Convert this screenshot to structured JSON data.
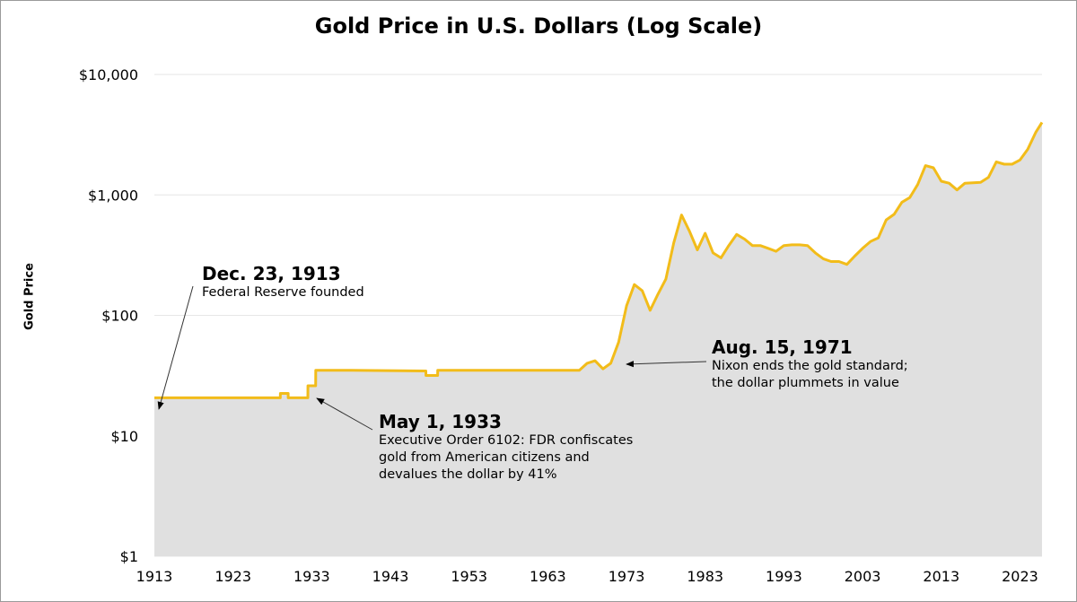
{
  "chart_data": {
    "type": "area",
    "title": "Gold Price in U.S. Dollars (Log Scale)",
    "xlabel": "",
    "ylabel": "Gold Price",
    "yscale": "log",
    "ylim": [
      1,
      10000
    ],
    "xlim": [
      1913,
      2025.8
    ],
    "yticks": [
      1,
      10,
      100,
      1000,
      10000
    ],
    "ytick_labels": [
      "$1",
      "$10",
      "$100",
      "$1,000",
      "$10,000"
    ],
    "xticks": [
      1913,
      1923,
      1933,
      1943,
      1953,
      1963,
      1973,
      1983,
      1993,
      2003,
      2013,
      2023
    ],
    "grid": "horizontal",
    "line_color": "#F2BC1A",
    "fill_color": "#E0E0E0",
    "x": [
      1913,
      1929,
      1929.01,
      1930,
      1930.01,
      1932.5,
      1932.51,
      1933.5,
      1933.51,
      1938,
      1947.5,
      1947.51,
      1949,
      1949.01,
      1967,
      1968,
      1969,
      1970,
      1971,
      1972,
      1973,
      1974,
      1975,
      1976,
      1977,
      1978,
      1979,
      1980,
      1981,
      1982,
      1983,
      1984,
      1985,
      1986,
      1987,
      1988,
      1989,
      1990,
      1991,
      1992,
      1993,
      1994,
      1995,
      1996,
      1997,
      1998,
      1999,
      2000,
      2001,
      2002,
      2003,
      2004,
      2005,
      2006,
      2007,
      2008,
      2009,
      2010,
      2011,
      2012,
      2013,
      2014,
      2015,
      2016,
      2017,
      2018,
      2019,
      2020,
      2021,
      2022,
      2023,
      2024,
      2025,
      2025.8
    ],
    "y": [
      20.67,
      20.67,
      22.5,
      22.5,
      20.67,
      20.67,
      26,
      26,
      35,
      35,
      34.5,
      31.7,
      31.7,
      35,
      35,
      40,
      42,
      36,
      40,
      60,
      120,
      180,
      160,
      110,
      150,
      200,
      400,
      680,
      500,
      350,
      480,
      330,
      300,
      380,
      470,
      430,
      380,
      380,
      360,
      340,
      380,
      385,
      385,
      380,
      330,
      295,
      280,
      280,
      265,
      310,
      360,
      410,
      440,
      620,
      690,
      870,
      950,
      1220,
      1750,
      1680,
      1300,
      1250,
      1100,
      1250,
      1260,
      1270,
      1400,
      1880,
      1800,
      1800,
      1950,
      2400,
      3300,
      4000
    ]
  },
  "annotations": [
    {
      "date": "Dec. 23, 1913",
      "text": [
        "Federal Reserve founded"
      ]
    },
    {
      "date": "May 1, 1933",
      "text": [
        "Executive Order 6102: FDR confiscates",
        "gold from American citizens and",
        "devalues the dollar by 41%"
      ]
    },
    {
      "date": "Aug. 15, 1971",
      "text": [
        "Nixon ends the gold standard;",
        "the dollar plummets in value"
      ]
    }
  ]
}
